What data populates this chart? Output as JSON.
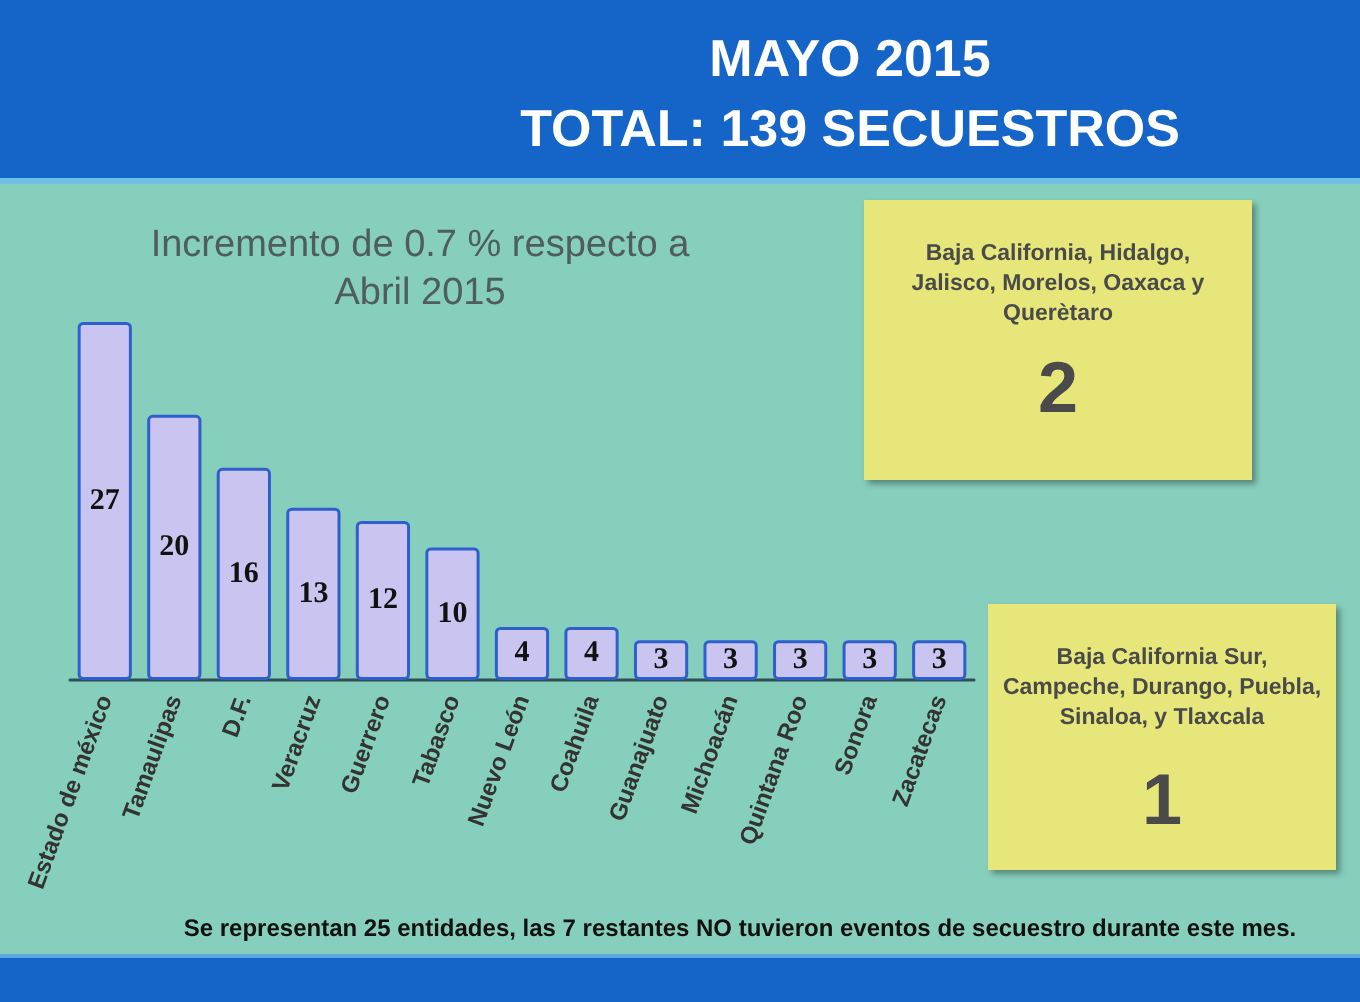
{
  "chart_data": {
    "type": "bar",
    "title": "MAYO 2015",
    "subtitle": "TOTAL: 139 SECUESTROS",
    "categories": [
      "Estado de méxico",
      "Tamaulipas",
      "D.F.",
      "Veracruz",
      "Guerrero",
      "Tabasco",
      "Nuevo León",
      "Coahuila",
      "Guanajuato",
      "Michoacán",
      "Quintana Roo",
      "Sonora",
      "Zacatecas"
    ],
    "values": [
      27,
      20,
      16,
      13,
      12,
      10,
      4,
      4,
      3,
      3,
      3,
      3,
      3
    ],
    "color": "#c9c5f0",
    "data_labels": true,
    "tick_labels": "x",
    "annotations": [
      "Incremento de 0.7 % respecto a Abril 2015",
      "Baja California, Hidalgo, Jalisco, Morelos, Oaxaca y Querètaro",
      "2",
      "Baja California Sur, Campeche, Durango, Puebla, Sinaloa, y Tlaxcala",
      "1",
      "Se representan 25 entidades, las 7 restantes NO tuvieron eventos de secuestro durante este mes."
    ]
  }
}
